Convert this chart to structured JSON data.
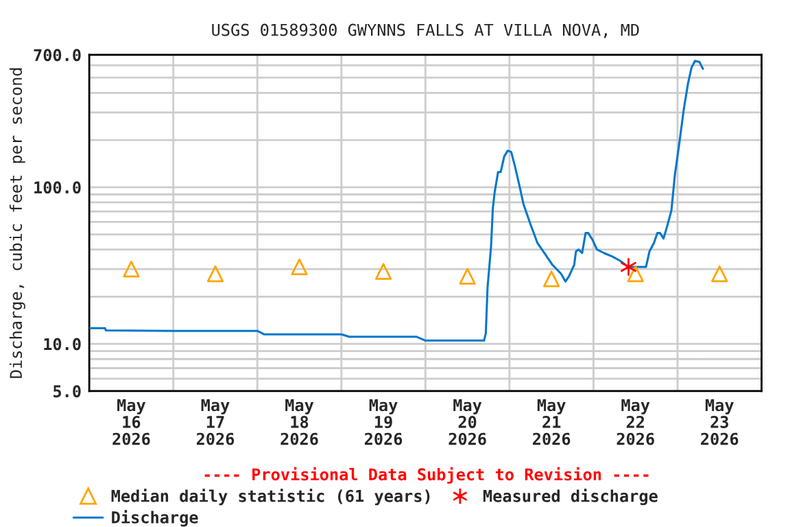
{
  "chart_data": {
    "type": "line",
    "title": "USGS 01589300 GWYNNS FALLS AT VILLA NOVA, MD",
    "ylabel": "Discharge, cubic feet per second",
    "log": "y",
    "grid": true,
    "legend": "bottom",
    "xlim": [
      "2026-05-16T00:00",
      "2026-05-24T00:00"
    ],
    "xticks": [
      {
        "value": "2026-05-16T12:00",
        "label": "May\n16\n2026"
      },
      {
        "value": "2026-05-17T12:00",
        "label": "May\n17\n2026"
      },
      {
        "value": "2026-05-18T12:00",
        "label": "May\n18\n2026"
      },
      {
        "value": "2026-05-19T12:00",
        "label": "May\n19\n2026"
      },
      {
        "value": "2026-05-20T12:00",
        "label": "May\n20\n2026"
      },
      {
        "value": "2026-05-21T12:00",
        "label": "May\n21\n2026"
      },
      {
        "value": "2026-05-22T12:00",
        "label": "May\n22\n2026"
      },
      {
        "value": "2026-05-23T12:00",
        "label": "May\n23\n2026"
      },
      {
        "value": "2026-05-17T00:00",
        "label": null
      },
      {
        "value": "2026-05-18T00:00",
        "label": null
      },
      {
        "value": "2026-05-19T00:00",
        "label": null
      },
      {
        "value": "2026-05-20T00:00",
        "label": null
      },
      {
        "value": "2026-05-21T00:00",
        "label": null
      },
      {
        "value": "2026-05-22T00:00",
        "label": null
      },
      {
        "value": "2026-05-23T00:00",
        "label": null
      }
    ],
    "ylim": [
      5,
      700
    ],
    "yticks": [
      {
        "value": 5,
        "label": "5.0"
      },
      {
        "value": 10,
        "label": "10.0"
      },
      {
        "value": 100,
        "label": "100.0"
      },
      {
        "value": 700,
        "label": "700.0"
      },
      {
        "value": 6,
        "label": null
      },
      {
        "value": 7,
        "label": null
      },
      {
        "value": 8,
        "label": null
      },
      {
        "value": 9,
        "label": null
      },
      {
        "value": 20,
        "label": null
      },
      {
        "value": 30,
        "label": null
      },
      {
        "value": 40,
        "label": null
      },
      {
        "value": 50,
        "label": null
      },
      {
        "value": 60,
        "label": null
      },
      {
        "value": 70,
        "label": null
      },
      {
        "value": 80,
        "label": null
      },
      {
        "value": 90,
        "label": null
      },
      {
        "value": 200,
        "label": null
      },
      {
        "value": 300,
        "label": null
      },
      {
        "value": 400,
        "label": null
      },
      {
        "value": 500,
        "label": null
      },
      {
        "value": 600,
        "label": null
      }
    ],
    "annotations": [
      "---- Provisional Data Subject to Revision ----"
    ],
    "series": [
      {
        "name": "Median daily statistic (61 years)",
        "type": "scatter",
        "marker": "triangle",
        "color": "#ffa500",
        "x": [
          "2026-05-16T12:00",
          "2026-05-17T12:00",
          "2026-05-18T12:00",
          "2026-05-19T12:00",
          "2026-05-20T12:00",
          "2026-05-21T12:00",
          "2026-05-22T12:00",
          "2026-05-23T12:00"
        ],
        "values": [
          30,
          28,
          31,
          29,
          27,
          26,
          28,
          28
        ]
      },
      {
        "name": "Discharge",
        "marker": "none",
        "color": "#0077cc",
        "x": [
          "2026-05-16T00:00",
          "2026-05-16T04:30",
          "2026-05-16T04:45",
          "2026-05-17T00:00",
          "2026-05-18T00:00",
          "2026-05-18T02:00",
          "2026-05-19T00:00",
          "2026-05-19T02:15",
          "2026-05-19T21:30",
          "2026-05-20T00:00",
          "2026-05-20T16:45",
          "2026-05-20T17:15",
          "2026-05-20T17:45",
          "2026-05-20T18:45",
          "2026-05-20T19:15",
          "2026-05-20T19:45",
          "2026-05-20T20:45",
          "2026-05-20T21:30",
          "2026-05-20T22:30",
          "2026-05-20T23:30",
          "2026-05-21T00:30",
          "2026-05-21T01:30",
          "2026-05-21T03:00",
          "2026-05-21T04:00",
          "2026-05-21T06:00",
          "2026-05-21T08:00",
          "2026-05-21T10:00",
          "2026-05-21T12:15",
          "2026-05-21T14:45",
          "2026-05-21T16:00",
          "2026-05-21T17:00",
          "2026-05-21T18:30",
          "2026-05-21T19:00",
          "2026-05-21T19:45",
          "2026-05-21T20:45",
          "2026-05-21T21:45",
          "2026-05-21T22:30",
          "2026-05-21T23:45",
          "2026-05-22T01:00",
          "2026-05-22T03:00",
          "2026-05-22T05:30",
          "2026-05-22T07:30",
          "2026-05-22T10:00",
          "2026-05-22T12:00",
          "2026-05-22T15:00",
          "2026-05-22T16:00",
          "2026-05-22T17:15",
          "2026-05-22T18:15",
          "2026-05-22T19:00",
          "2026-05-22T20:00",
          "2026-05-22T21:00",
          "2026-05-22T22:15",
          "2026-05-22T23:15",
          "2026-05-23T00:30",
          "2026-05-23T01:45",
          "2026-05-23T03:00",
          "2026-05-23T04:00",
          "2026-05-23T05:00",
          "2026-05-23T06:15",
          "2026-05-23T07:15"
        ],
        "values": [
          12.6,
          12.6,
          12.2,
          12.1,
          12.1,
          11.5,
          11.5,
          11.1,
          11.1,
          10.5,
          10.5,
          11.7,
          23,
          42,
          73,
          92,
          125,
          125,
          157,
          171,
          168,
          138,
          99,
          78,
          58,
          44,
          38,
          32,
          28,
          25,
          27,
          32,
          39,
          40,
          38,
          51,
          51,
          46,
          40,
          38,
          36,
          34,
          31,
          31,
          31,
          39,
          44,
          51,
          51,
          47,
          56,
          71,
          120,
          190,
          310,
          460,
          580,
          640,
          630,
          570
        ]
      },
      {
        "name": "Measured discharge",
        "type": "scatter",
        "marker": "cross",
        "color": "#ff0000",
        "x": [
          "2026-05-22T10:00"
        ],
        "values": [
          31
        ]
      }
    ]
  }
}
